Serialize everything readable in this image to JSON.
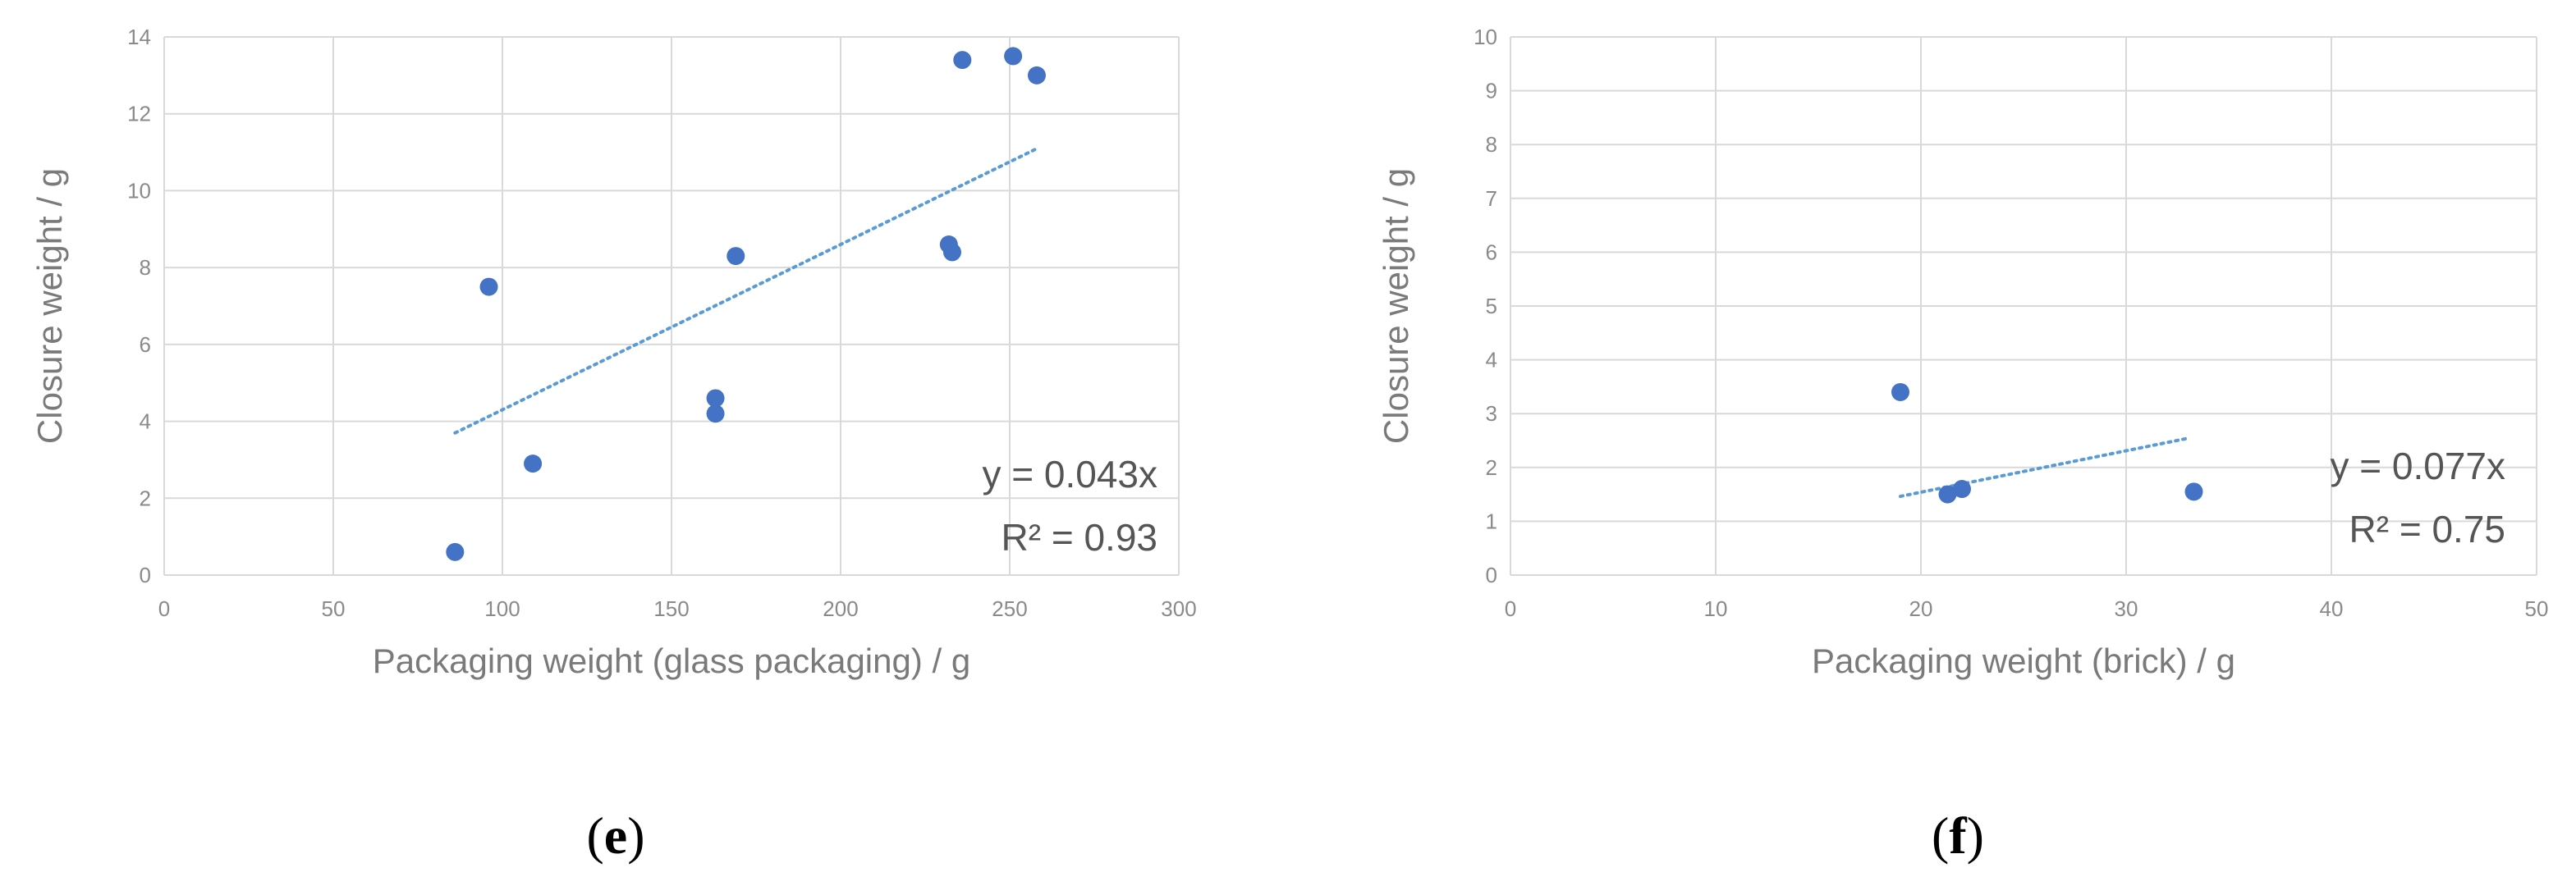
{
  "chart_data": [
    {
      "type": "scatter",
      "panel_label": "e",
      "xlabel": "Packaging weight (glass packaging) / g",
      "ylabel": "Closure weight / g",
      "xlim": [
        0,
        300
      ],
      "ylim": [
        0,
        14
      ],
      "xticks": [
        0,
        50,
        100,
        150,
        200,
        250,
        300
      ],
      "yticks": [
        0,
        2,
        4,
        6,
        8,
        10,
        12,
        14
      ],
      "grid": true,
      "marker_color": "#4472C4",
      "trendline_color": "#5B9BD5",
      "points": [
        {
          "x": 86,
          "y": 0.6
        },
        {
          "x": 96,
          "y": 7.5
        },
        {
          "x": 109,
          "y": 2.9
        },
        {
          "x": 163,
          "y": 4.6
        },
        {
          "x": 163,
          "y": 4.2
        },
        {
          "x": 169,
          "y": 8.3
        },
        {
          "x": 232,
          "y": 8.6
        },
        {
          "x": 233,
          "y": 8.4
        },
        {
          "x": 236,
          "y": 13.4
        },
        {
          "x": 251,
          "y": 13.5
        },
        {
          "x": 258,
          "y": 13.0
        }
      ],
      "trendline": {
        "slope": 0.043,
        "x_range": [
          86,
          258
        ]
      },
      "equation": "y = 0.043x",
      "r_squared": "R² = 0.93"
    },
    {
      "type": "scatter",
      "panel_label": "f",
      "xlabel": "Packaging weight (brick) / g",
      "ylabel": "Closure weight / g",
      "xlim": [
        0,
        50
      ],
      "ylim": [
        0,
        10
      ],
      "xticks": [
        0,
        10,
        20,
        30,
        40,
        50
      ],
      "yticks": [
        0,
        1,
        2,
        3,
        4,
        5,
        6,
        7,
        8,
        9,
        10
      ],
      "grid": true,
      "marker_color": "#4472C4",
      "trendline_color": "#5B9BD5",
      "points": [
        {
          "x": 19,
          "y": 3.4
        },
        {
          "x": 21.3,
          "y": 1.5
        },
        {
          "x": 22,
          "y": 1.6
        },
        {
          "x": 33.3,
          "y": 1.55
        }
      ],
      "trendline": {
        "slope": 0.077,
        "x_range": [
          19,
          33
        ]
      },
      "equation": "y = 0.077x",
      "r_squared": "R² = 0.75"
    }
  ]
}
